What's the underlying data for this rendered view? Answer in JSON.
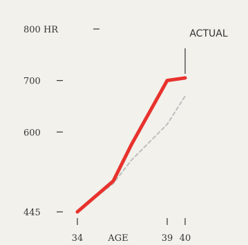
{
  "chart_data": {
    "type": "line",
    "x": [
      34,
      36,
      37,
      39,
      40
    ],
    "series": [
      {
        "values": [
          445,
          505,
          575,
          700,
          705
        ],
        "color": "#e8322d",
        "style": "solid"
      },
      {
        "values": [
          445,
          500,
          545,
          615,
          670
        ],
        "color": "#bdbdbd",
        "style": "dashed"
      }
    ],
    "y_ticks": [
      {
        "value": 800,
        "label": "800 HR"
      },
      {
        "value": 700,
        "label": "700"
      },
      {
        "value": 600,
        "label": "600"
      },
      {
        "value": 445,
        "label": "445"
      }
    ],
    "x_ticks": [
      {
        "value": 34,
        "label": "34"
      },
      {
        "value": 39,
        "label": "39"
      },
      {
        "value": 40,
        "label": "40"
      }
    ],
    "xlabel": "AGE",
    "annotation": {
      "text": "ACTUAL",
      "x": 40,
      "series": 0
    },
    "xlim": [
      34,
      40
    ],
    "ylim": [
      445,
      800
    ],
    "grid": false
  }
}
